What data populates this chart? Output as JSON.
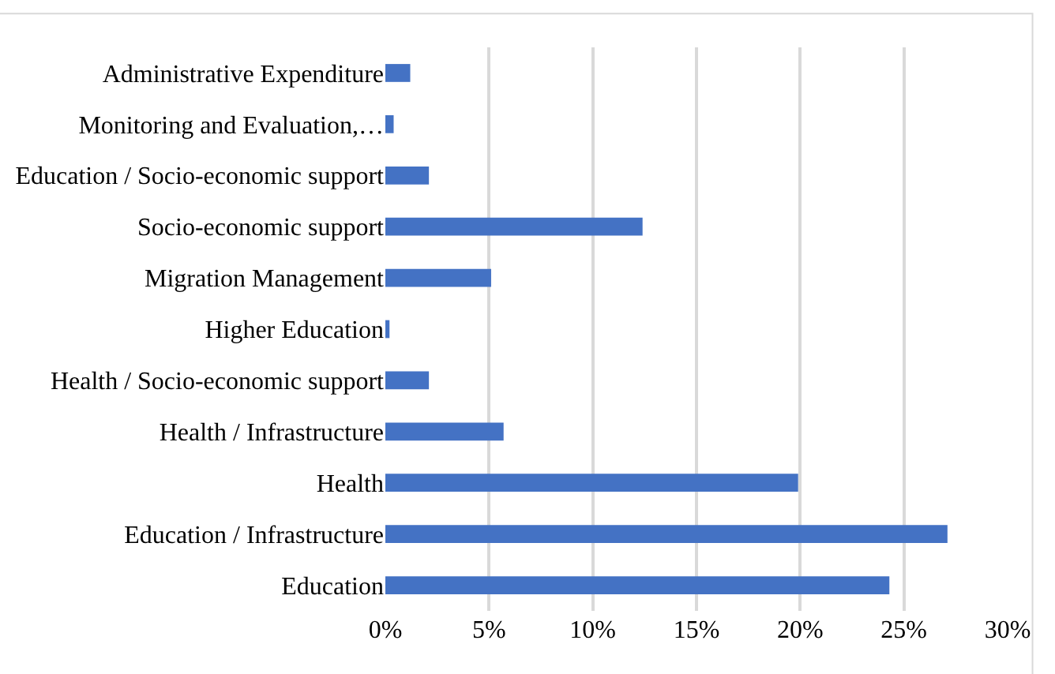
{
  "chart_data": {
    "type": "bar",
    "orientation": "horizontal",
    "categories": [
      "Administrative Expenditure",
      "Monitoring and Evaluation,…",
      "Education / Socio-economic support",
      "Socio-economic support",
      "Migration Management",
      "Higher Education",
      "Health / Socio-economic support",
      "Health / Infrastructure",
      "Health",
      "Education / Infrastructure",
      "Education"
    ],
    "values": [
      1.2,
      0.4,
      2.1,
      12.4,
      5.1,
      0.2,
      2.1,
      5.7,
      19.9,
      27.1,
      24.3
    ],
    "color": "#4472c4",
    "xlim": [
      0,
      30
    ],
    "xticks": [
      {
        "value": 0,
        "label": "0%"
      },
      {
        "value": 5,
        "label": "5%"
      },
      {
        "value": 10,
        "label": "10%"
      },
      {
        "value": 15,
        "label": "15%"
      },
      {
        "value": 20,
        "label": "20%"
      },
      {
        "value": 25,
        "label": "25%"
      },
      {
        "value": 30,
        "label": "30%"
      }
    ],
    "grid": "x"
  }
}
